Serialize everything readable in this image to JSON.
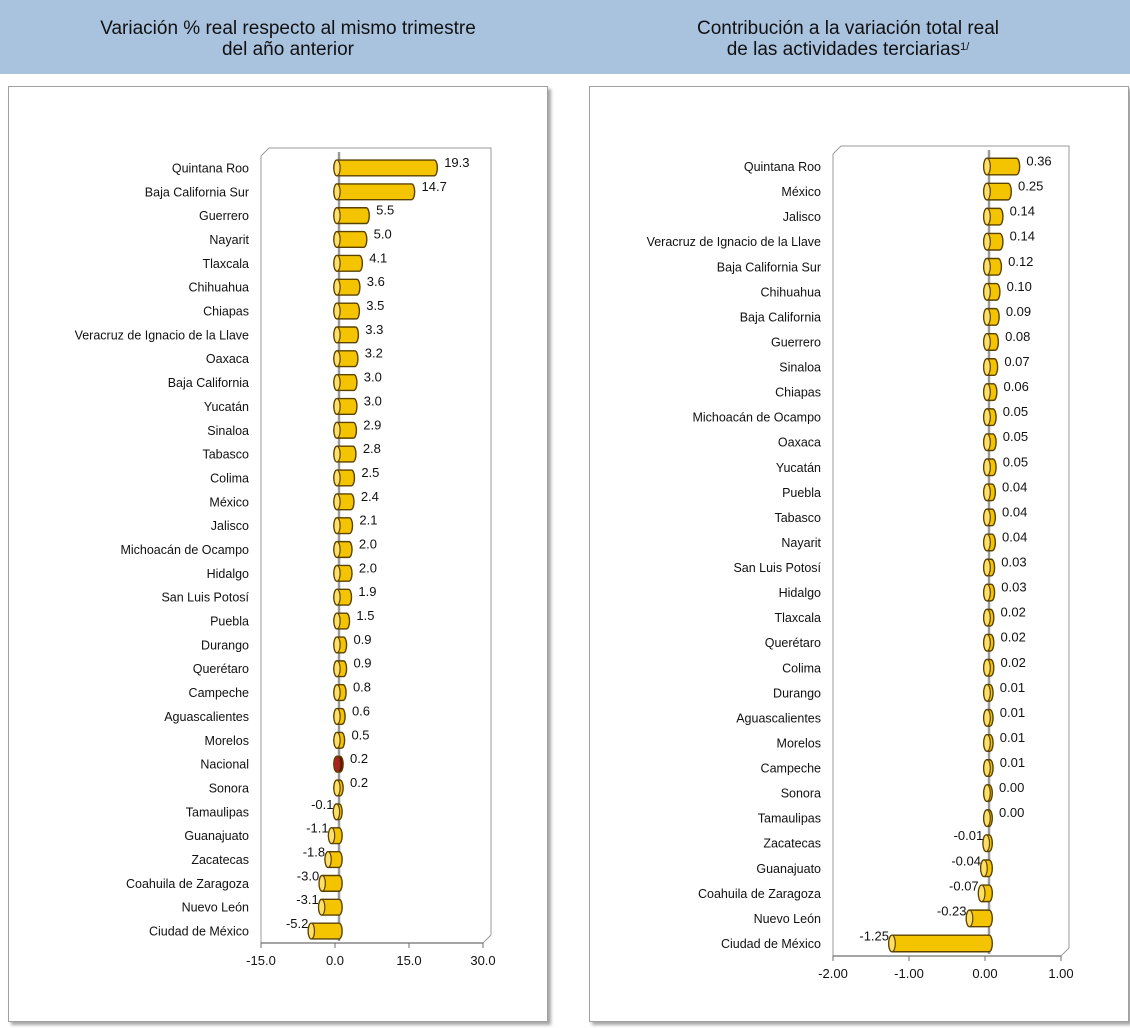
{
  "header": {
    "left_title_line1": "Variación % real respecto al mismo trimestre",
    "left_title_line2": "del año anterior",
    "right_title_line1": "Contribución a la variación total real",
    "right_title_line2": "de las actividades terciarias",
    "right_title_sup": "1/"
  },
  "colors": {
    "bar_fill": "#f5c400",
    "bar_cap": "#ffe066",
    "bar_edge": "#5a4200",
    "highlight_fill": "#7a0000",
    "header_bg": "#a9c3df"
  },
  "chart_data": [
    {
      "type": "bar",
      "orientation": "horizontal",
      "categories": [
        "Quintana Roo",
        "Baja California Sur",
        "Guerrero",
        "Nayarit",
        "Tlaxcala",
        "Chihuahua",
        "Chiapas",
        "Veracruz de Ignacio de la Llave",
        "Oaxaca",
        "Baja California",
        "Yucatán",
        "Sinaloa",
        "Tabasco",
        "Colima",
        "México",
        "Jalisco",
        "Michoacán de Ocampo",
        "Hidalgo",
        "San Luis Potosí",
        "Puebla",
        "Durango",
        "Querétaro",
        "Campeche",
        "Aguascalientes",
        "Morelos",
        "Nacional",
        "Sonora",
        "Tamaulipas",
        "Guanajuato",
        "Zacatecas",
        "Coahuila de Zaragoza",
        "Nuevo León",
        "Ciudad de México"
      ],
      "values": [
        19.3,
        14.7,
        5.5,
        5.0,
        4.1,
        3.6,
        3.5,
        3.3,
        3.2,
        3.0,
        3.0,
        2.9,
        2.8,
        2.5,
        2.4,
        2.1,
        2.0,
        2.0,
        1.9,
        1.5,
        0.9,
        0.9,
        0.8,
        0.6,
        0.5,
        0.2,
        0.2,
        -0.1,
        -1.1,
        -1.8,
        -3.0,
        -3.1,
        -5.2
      ],
      "value_labels": [
        "19.3",
        "14.7",
        "5.5",
        "5.0",
        "4.1",
        "3.6",
        "3.5",
        "3.3",
        "3.2",
        "3.0",
        "3.0",
        "2.9",
        "2.8",
        "2.5",
        "2.4",
        "2.1",
        "2.0",
        "2.0",
        "1.9",
        "1.5",
        "0.9",
        "0.9",
        "0.8",
        "0.6",
        "0.5",
        "0.2",
        "0.2",
        "-0.1",
        "-1.1",
        "-1.8",
        "-3.0",
        "-3.1",
        "-5.2"
      ],
      "highlight": "Nacional",
      "xlim": [
        -15,
        30
      ],
      "xticks": [
        -15,
        0,
        15,
        30
      ],
      "xtick_labels": [
        "-15.0",
        "0.0",
        "15.0",
        "30.0"
      ],
      "grid": false
    },
    {
      "type": "bar",
      "orientation": "horizontal",
      "categories": [
        "Quintana Roo",
        "México",
        "Jalisco",
        "Veracruz de Ignacio de la Llave",
        "Baja California Sur",
        "Chihuahua",
        "Baja California",
        "Guerrero",
        "Sinaloa",
        "Chiapas",
        "Michoacán de Ocampo",
        "Oaxaca",
        "Yucatán",
        "Puebla",
        "Tabasco",
        "Nayarit",
        "San Luis Potosí",
        "Hidalgo",
        "Tlaxcala",
        "Querétaro",
        "Colima",
        "Durango",
        "Aguascalientes",
        "Morelos",
        "Campeche",
        "Sonora",
        "Tamaulipas",
        "Zacatecas",
        "Guanajuato",
        "Coahuila de Zaragoza",
        "Nuevo León",
        "Ciudad de México"
      ],
      "values": [
        0.36,
        0.25,
        0.14,
        0.14,
        0.12,
        0.1,
        0.09,
        0.08,
        0.07,
        0.06,
        0.05,
        0.05,
        0.05,
        0.04,
        0.04,
        0.04,
        0.03,
        0.03,
        0.02,
        0.02,
        0.02,
        0.01,
        0.01,
        0.01,
        0.01,
        0.0,
        0.0,
        -0.01,
        -0.04,
        -0.07,
        -0.23,
        -1.25
      ],
      "value_labels": [
        "0.36",
        "0.25",
        "0.14",
        "0.14",
        "0.12",
        "0.10",
        "0.09",
        "0.08",
        "0.07",
        "0.06",
        "0.05",
        "0.05",
        "0.05",
        "0.04",
        "0.04",
        "0.04",
        "0.03",
        "0.03",
        "0.02",
        "0.02",
        "0.02",
        "0.01",
        "0.01",
        "0.01",
        "0.01",
        "0.00",
        "0.00",
        "-0.01",
        "-0.04",
        "-0.07",
        "-0.23",
        "-1.25"
      ],
      "xlim": [
        -2,
        1
      ],
      "xticks": [
        -2,
        -1,
        0,
        1
      ],
      "xtick_labels": [
        "-2.00",
        "-1.00",
        "0.00",
        "1.00"
      ],
      "grid": false
    }
  ]
}
